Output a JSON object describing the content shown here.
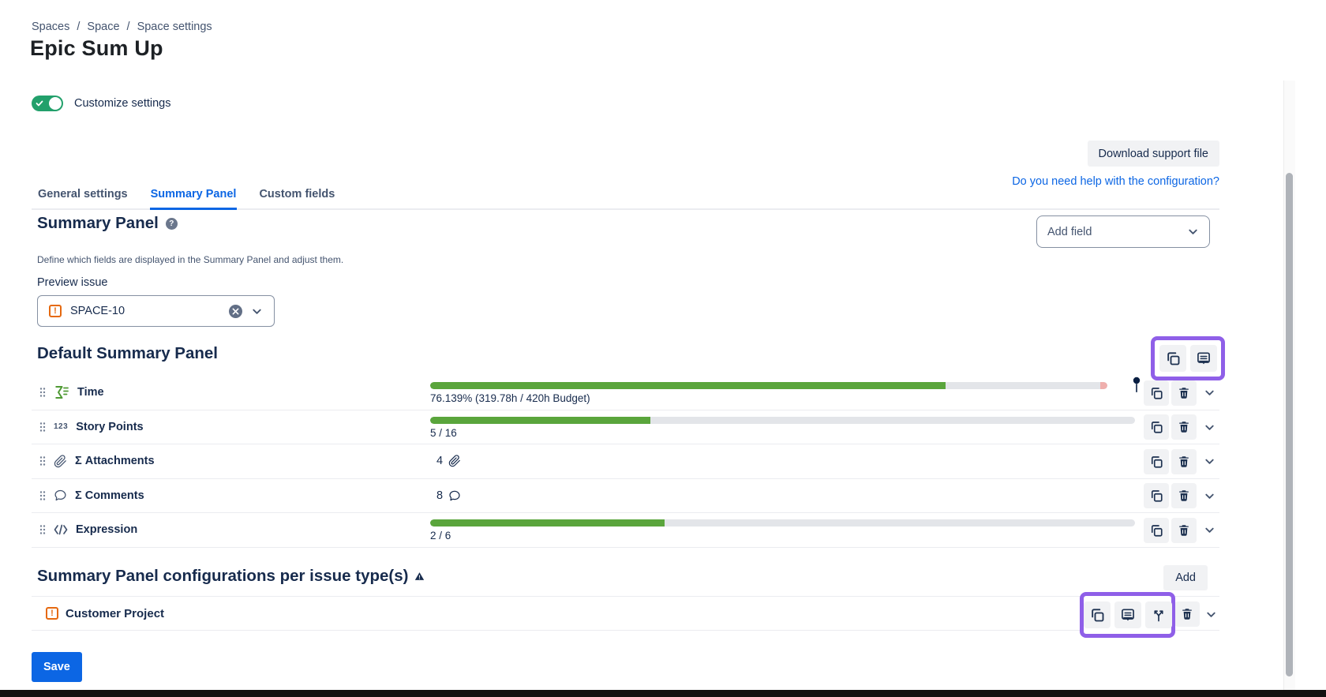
{
  "header": {
    "breadcrumb": [
      "Spaces",
      "Space",
      "Space settings"
    ],
    "breadcrumb_separator": "/",
    "title": "Epic Sum Up"
  },
  "settings": {
    "customize_toggle_label": "Customize settings",
    "customize_toggle_on": true,
    "download_support_button": "Download support file",
    "help_link": "Do you need help with the configuration?"
  },
  "tabs": [
    {
      "label": "General settings",
      "active": false
    },
    {
      "label": "Summary Panel",
      "active": true
    },
    {
      "label": "Custom fields",
      "active": false
    }
  ],
  "summary_panel": {
    "heading": "Summary Panel",
    "add_field_placeholder": "Add field",
    "description": "Define which fields are displayed in the Summary Panel and adjust them.",
    "preview_issue_label": "Preview issue",
    "preview_issue_value": "SPACE-10",
    "preview_issue_type_glyph": "!"
  },
  "default_panel": {
    "heading": "Default Summary Panel",
    "rows": [
      {
        "label": "Time",
        "icon": "sum-time-icon",
        "type": "progress",
        "value_text": "76.139% (319.78h / 420h Budget)",
        "percent": 76.139,
        "over_budget_marker": true
      },
      {
        "label": "Story Points",
        "icon": "number-123-icon",
        "icon_text": "123",
        "type": "progress",
        "value_text": "5 / 16",
        "percent": 31.25
      },
      {
        "label": "Σ Attachments",
        "icon": "paperclip-icon",
        "type": "count",
        "value_text": "4"
      },
      {
        "label": "Σ Comments",
        "icon": "comment-icon",
        "type": "count",
        "value_text": "8"
      },
      {
        "label": "Expression",
        "icon": "code-icon",
        "type": "progress",
        "value_text": "2 / 6",
        "percent": 33.3
      }
    ]
  },
  "issue_type_section": {
    "heading": "Summary Panel configurations per issue type(s)",
    "add_button": "Add",
    "rows": [
      {
        "label": "Customer Project",
        "issue_type_glyph": "!"
      }
    ]
  },
  "footer": {
    "save_button": "Save"
  },
  "colors": {
    "accent_blue": "#0C66E4",
    "toggle_green": "#22A06B",
    "progress_green": "#5AA53C",
    "progress_track": "#E3E5E9",
    "over_budget_pink": "#EFAFAD",
    "highlight_purple": "#8F5FE8",
    "issue_type_orange": "#E56910",
    "text_navy": "#172B4D"
  }
}
